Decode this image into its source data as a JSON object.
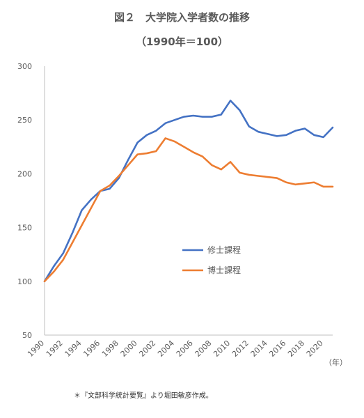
{
  "chart_data": {
    "type": "line",
    "title": "図２　大学院入学者数の推移",
    "subtitle": "（1990年＝100）",
    "x_unit_label": "（年）",
    "note": "＊『文部科学統計要覧』より堀田敏彦作成。",
    "ylim": [
      50,
      300
    ],
    "yticks": [
      50,
      100,
      150,
      200,
      250,
      300
    ],
    "xlim": [
      1990,
      2021
    ],
    "xticks": [
      1990,
      1992,
      1994,
      1996,
      1998,
      2000,
      2002,
      2004,
      2006,
      2008,
      2010,
      2012,
      2014,
      2016,
      2018,
      2020
    ],
    "grid": false,
    "legend_position": "center-right",
    "x": [
      1990,
      1991,
      1992,
      1993,
      1994,
      1995,
      1996,
      1997,
      1998,
      1999,
      2000,
      2001,
      2002,
      2003,
      2004,
      2005,
      2006,
      2007,
      2008,
      2009,
      2010,
      2011,
      2012,
      2013,
      2014,
      2015,
      2016,
      2017,
      2018,
      2019,
      2020,
      2021
    ],
    "series": [
      {
        "name": "修士課程",
        "color": "#4472C4",
        "values": [
          100,
          114,
          126,
          145,
          166,
          176,
          184,
          186,
          196,
          213,
          229,
          236,
          240,
          247,
          250,
          253,
          254,
          253,
          253,
          255,
          268,
          259,
          244,
          239,
          237,
          235,
          236,
          240,
          242,
          236,
          234,
          243
        ]
      },
      {
        "name": "博士課程",
        "color": "#ED7D31",
        "values": [
          100,
          109,
          120,
          136,
          152,
          168,
          184,
          189,
          198,
          208,
          218,
          219,
          221,
          233,
          230,
          225,
          220,
          216,
          208,
          204,
          211,
          201,
          199,
          198,
          197,
          196,
          192,
          190,
          191,
          192,
          188,
          188
        ]
      }
    ]
  }
}
